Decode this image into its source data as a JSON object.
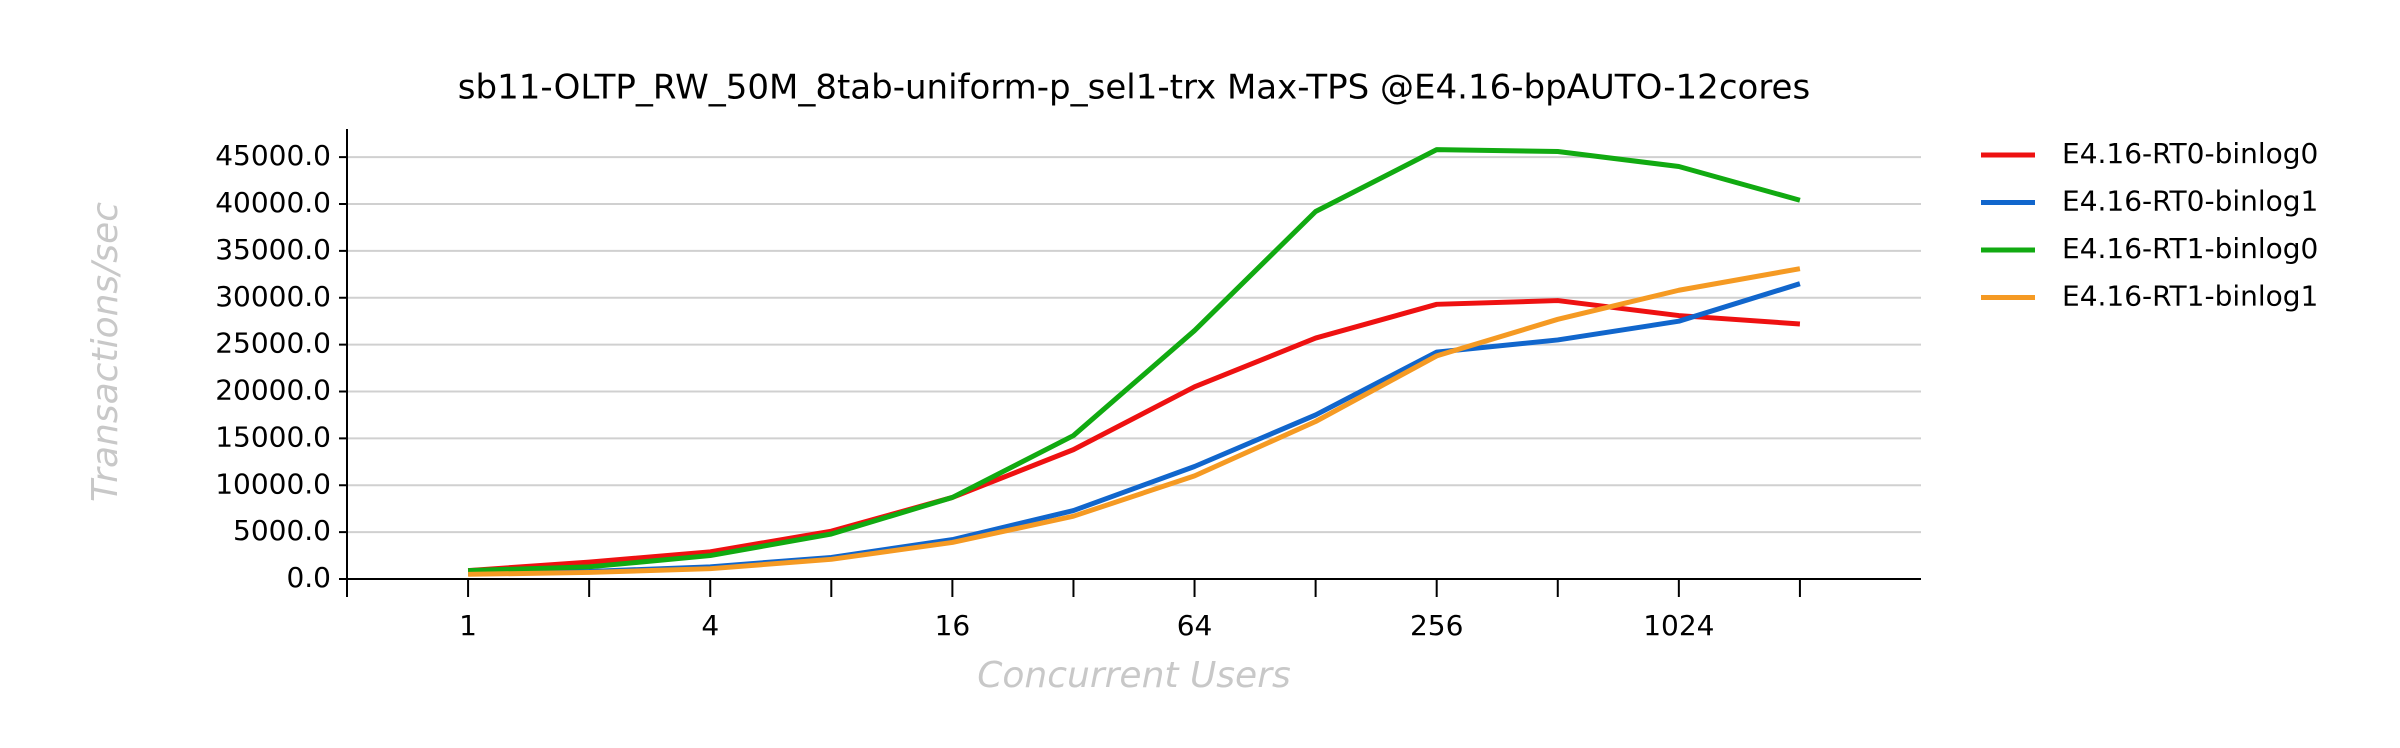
{
  "chart_data": {
    "type": "line",
    "title": "sb11-OLTP_RW_50M_8tab-uniform-p_sel1-trx Max-TPS @E4.16-bpAUTO-12cores",
    "x_label": "Concurrent Users",
    "y_label": "Transactions/sec",
    "categories": [
      "1",
      null,
      "4",
      null,
      "16",
      null,
      "64",
      null,
      "256",
      null,
      "1024",
      null
    ],
    "series": [
      {
        "name": "E4.16-RT0-binlog0",
        "color": "#ee1111",
        "values": [
          900,
          1800,
          2900,
          5100,
          8700,
          13800,
          20500,
          25700,
          29300,
          29700,
          28100,
          27200
        ]
      },
      {
        "name": "E4.16-RT0-binlog1",
        "color": "#1166cc",
        "values": [
          600,
          800,
          1300,
          2300,
          4200,
          7300,
          12000,
          17500,
          24200,
          25500,
          27500,
          31500
        ]
      },
      {
        "name": "E4.16-RT1-binlog0",
        "color": "#11aa11",
        "values": [
          900,
          1300,
          2500,
          4800,
          8700,
          15300,
          26500,
          39200,
          45800,
          45600,
          44000,
          40400
        ]
      },
      {
        "name": "E4.16-RT1-binlog1",
        "color": "#f59a23",
        "values": [
          500,
          700,
          1100,
          2100,
          3900,
          6700,
          11000,
          16800,
          23800,
          27700,
          30800,
          33100
        ]
      }
    ],
    "ylim": [
      0,
      48000
    ],
    "yticks": [
      {
        "value": 0,
        "label": "0.0"
      },
      {
        "value": 5000,
        "label": "5000.0"
      },
      {
        "value": 10000,
        "label": "10000.0"
      },
      {
        "value": 15000,
        "label": "15000.0"
      },
      {
        "value": 20000,
        "label": "20000.0"
      },
      {
        "value": 25000,
        "label": "25000.0"
      },
      {
        "value": 30000,
        "label": "30000.0"
      },
      {
        "value": 35000,
        "label": "35000.0"
      },
      {
        "value": 40000,
        "label": "40000.0"
      },
      {
        "value": 45000,
        "label": "45000.0"
      }
    ],
    "grid": true,
    "legend": "right"
  }
}
